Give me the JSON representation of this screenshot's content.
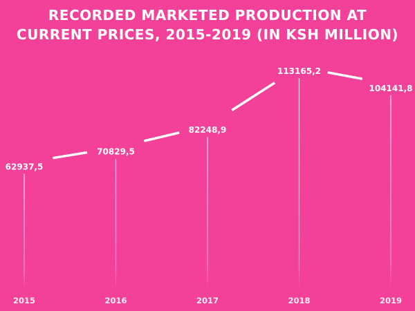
{
  "chart_data": {
    "type": "line",
    "title_lines": [
      "RECORDED MARKETED PRODUCTION AT",
      "CURRENT PRICES, 2015-2019 (IN KSH MILLION)"
    ],
    "categories": [
      "2015",
      "2016",
      "2017",
      "2018",
      "2019"
    ],
    "values": [
      62937.5,
      70829.5,
      82248.9,
      113165.2,
      104141.8
    ],
    "value_labels": [
      "62937,5",
      "70829,5",
      "82248,9",
      "113165,2",
      "104141,8"
    ],
    "xlabel": "",
    "ylabel": "",
    "ylim": [
      0,
      113165.2
    ],
    "grid": false,
    "colors": {
      "background": "#f3419a",
      "line": "#ffffff"
    }
  }
}
